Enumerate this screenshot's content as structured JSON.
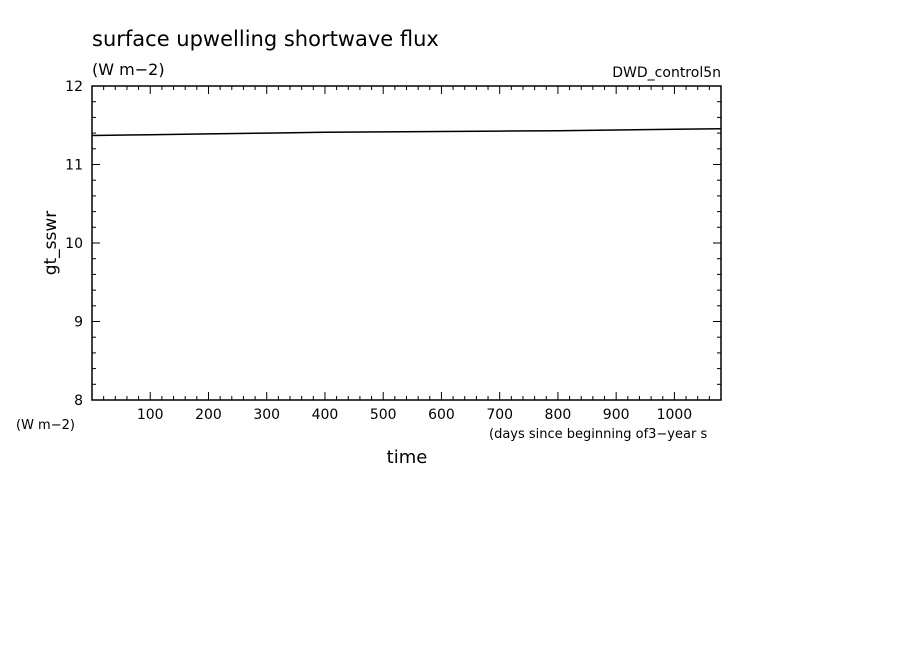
{
  "chart_data": {
    "type": "line",
    "title": "surface upwelling shortwave flux",
    "units": "(W m−2)",
    "run_label": "DWD_control5n",
    "ylabel": "gt_sswr",
    "y_units_bottom": "(W m−2)",
    "xlabel": "time",
    "x_units": "(days since beginning of3−year s",
    "xlim": [
      0,
      1080
    ],
    "ylim": [
      8,
      12
    ],
    "x_ticks": [
      100,
      200,
      300,
      400,
      500,
      600,
      700,
      800,
      900,
      1000
    ],
    "y_ticks": [
      8,
      9,
      10,
      11,
      12
    ],
    "grid": false,
    "series": [
      {
        "x": [
          0,
          100,
          200,
          300,
          400,
          500,
          600,
          700,
          800,
          900,
          1000,
          1080
        ],
        "y": [
          11.37,
          11.38,
          11.39,
          11.4,
          11.41,
          11.415,
          11.42,
          11.425,
          11.43,
          11.44,
          11.45,
          11.455
        ]
      }
    ]
  }
}
